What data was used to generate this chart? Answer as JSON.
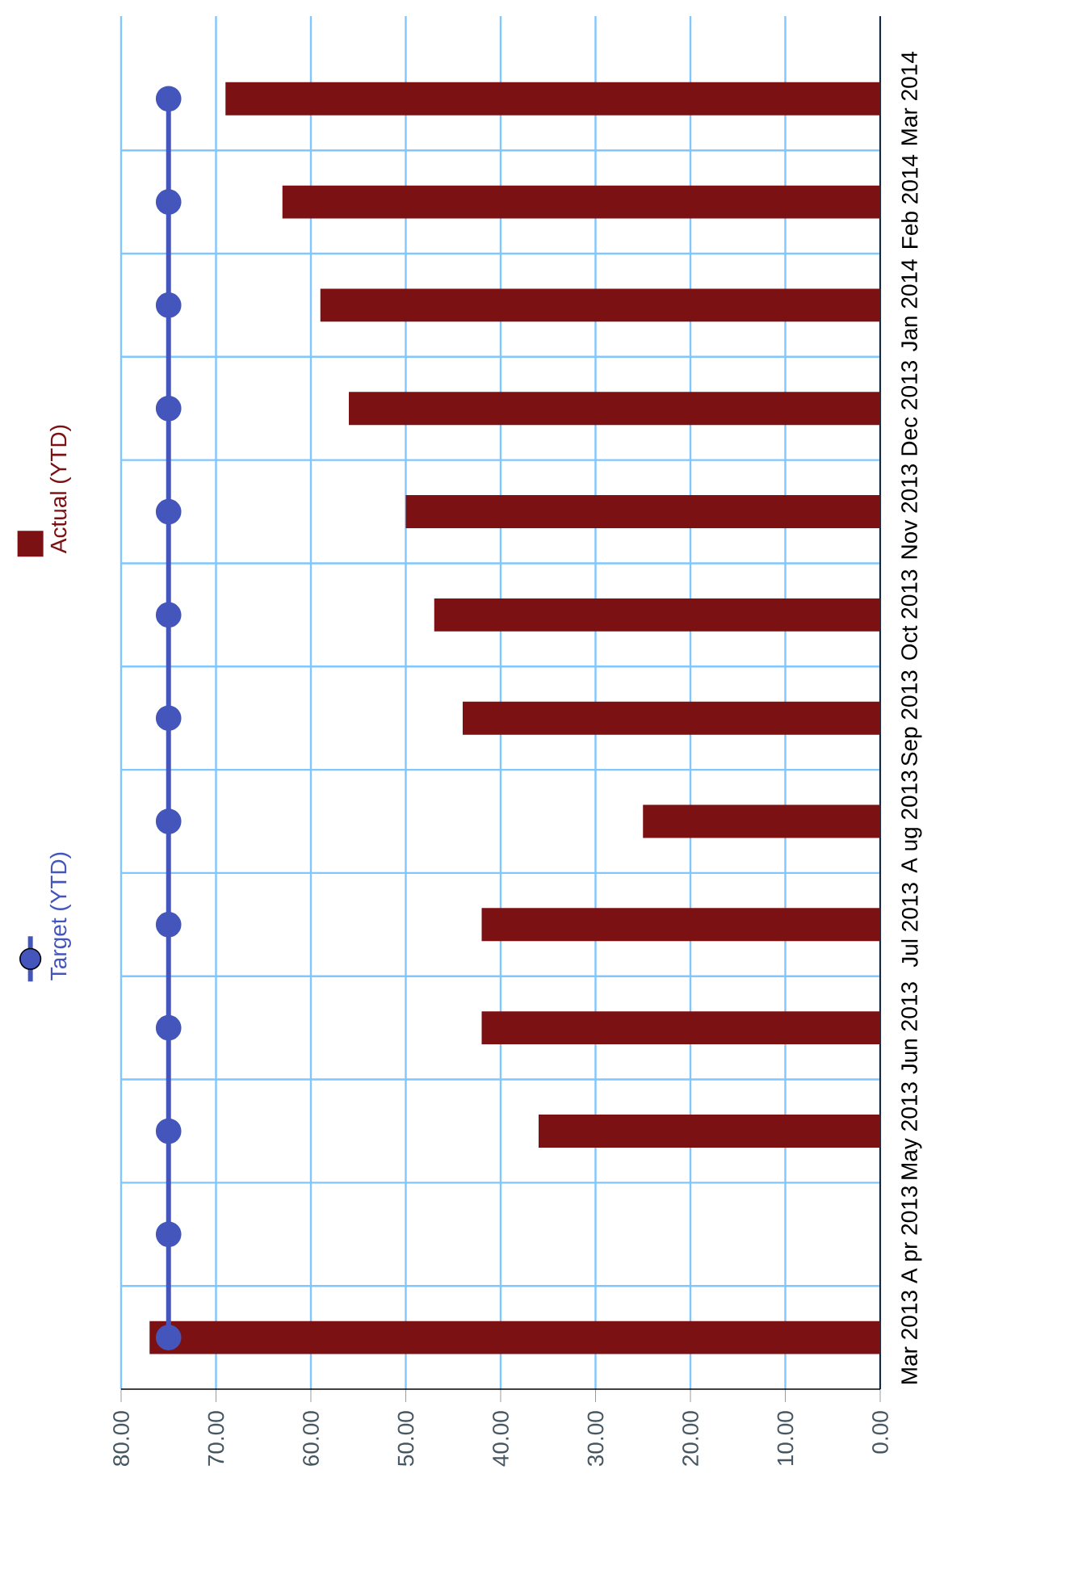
{
  "chart_data": {
    "type": "bar",
    "orientation": "horizontal",
    "categories": [
      "Mar 2014",
      "Feb 2014",
      "Jan 2014",
      "Dec 2013",
      "Nov 2013",
      "Oct 2013",
      "Sep 2013",
      "A ug 2013",
      "Jul 2013",
      "Jun 2013",
      "May 2013",
      "A pr 2013",
      "Mar 2013"
    ],
    "series": [
      {
        "name": "Target (YTD)",
        "type": "line",
        "color": "#4455bb",
        "marker": "circle",
        "values": [
          75,
          75,
          75,
          75,
          75,
          75,
          75,
          75,
          75,
          75,
          75,
          75,
          75
        ]
      },
      {
        "name": "Actual (YTD)",
        "type": "bar",
        "color": "#7b1113",
        "values": [
          69,
          63,
          59,
          56,
          50,
          47,
          44,
          25,
          42,
          42,
          36,
          null,
          77
        ]
      }
    ],
    "xlim": [
      80,
      0
    ],
    "xticks": [
      {
        "value": 80,
        "label": "80.00"
      },
      {
        "value": 70,
        "label": "70.00"
      },
      {
        "value": 60,
        "label": "60.00"
      },
      {
        "value": 50,
        "label": "50.00"
      },
      {
        "value": 40,
        "label": "40.00"
      },
      {
        "value": 30,
        "label": "30.00"
      },
      {
        "value": 20,
        "label": "20.00"
      },
      {
        "value": 10,
        "label": "10.00"
      },
      {
        "value": 0,
        "label": "0.00"
      }
    ],
    "grid": true,
    "legend": "left"
  }
}
